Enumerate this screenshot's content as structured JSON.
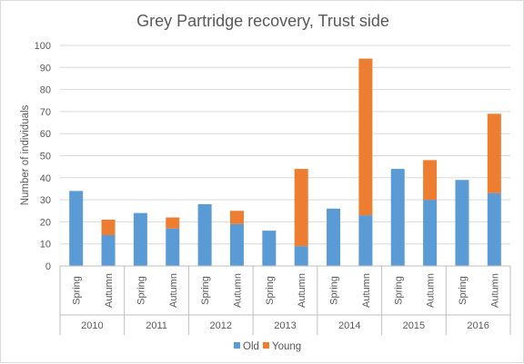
{
  "chart_data": {
    "type": "bar",
    "stacked": true,
    "title": "Grey Partridge recovery, Trust side",
    "ylabel": "Number  of individuals",
    "xlabel": "",
    "ylim": [
      0,
      100
    ],
    "yticks": [
      0,
      10,
      20,
      30,
      40,
      50,
      60,
      70,
      80,
      90,
      100
    ],
    "groups": [
      "2010",
      "2011",
      "2012",
      "2013",
      "2014",
      "2015",
      "2016"
    ],
    "subcategories": [
      "Spring",
      "Autumn"
    ],
    "categories": [
      "Spring",
      "Autumn",
      "Spring",
      "Autumn",
      "Spring",
      "Autumn",
      "Spring",
      "Autumn",
      "Spring",
      "Autumn",
      "Spring",
      "Autumn",
      "Spring",
      "Autumn"
    ],
    "series": [
      {
        "name": "Old",
        "color": "#5b9bd5",
        "values": [
          34,
          14,
          24,
          17,
          28,
          19,
          16,
          9,
          26,
          23,
          44,
          30,
          39,
          33
        ]
      },
      {
        "name": "Young",
        "color": "#ed7d31",
        "values": [
          0,
          7,
          0,
          5,
          0,
          6,
          0,
          35,
          0,
          71,
          0,
          18,
          0,
          36
        ]
      }
    ],
    "grid": true,
    "legend": "bottom"
  }
}
